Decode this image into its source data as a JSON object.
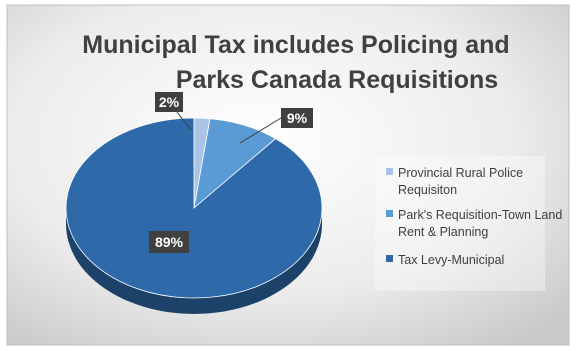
{
  "chart_data": {
    "type": "pie",
    "title_lines": [
      "Municipal Tax includes Policing and",
      "Parks Canada Requisitions"
    ],
    "categories": [
      "Provincial Rural Police Requisiton",
      "Park's Requisition-Town Land Rent & Planning",
      "Tax Levy-Municipal"
    ],
    "values": [
      2,
      9,
      89
    ],
    "data_labels": [
      "2%",
      "9%",
      "89%"
    ],
    "colors": [
      "#a9c4e6",
      "#5b9bd5",
      "#2e6aa9"
    ],
    "legend_position": "right",
    "legend_lines": [
      [
        "Provincial Rural Police",
        "Requisiton"
      ],
      [
        "Park's Requisition-Town Land",
        "Rent & Planning"
      ],
      [
        "Tax Levy-Municipal"
      ]
    ]
  }
}
